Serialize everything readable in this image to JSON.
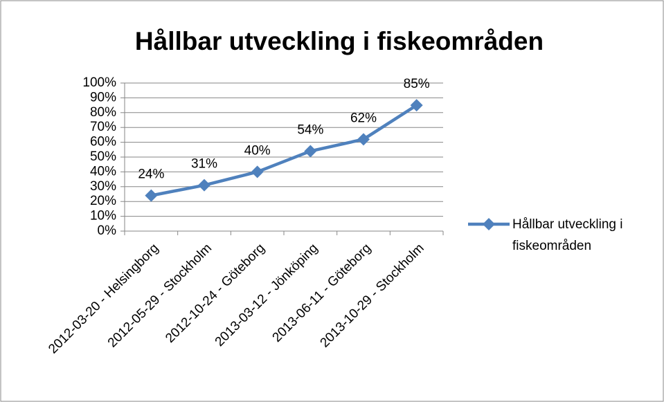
{
  "chart_data": {
    "type": "line",
    "title": "Hållbar utveckling i fiskeområden",
    "categories": [
      "2012-03-20 - Helsingborg",
      "2012-05-29 - Stockholm",
      "2012-10-24 - Göteborg",
      "2013-03-12 - Jönköping",
      "2013-06-11 - Göteborg",
      "2013-10-29 - Stockholm"
    ],
    "series": [
      {
        "name": "Hållbar utveckling i fiskeområden",
        "color": "#4f81bd",
        "values": [
          24,
          31,
          40,
          54,
          62,
          85
        ],
        "value_labels": [
          "24%",
          "31%",
          "40%",
          "54%",
          "62%",
          "85%"
        ]
      }
    ],
    "ylim": [
      0,
      100
    ],
    "yticks": [
      {
        "value": 0,
        "label": "0%"
      },
      {
        "value": 10,
        "label": "10%"
      },
      {
        "value": 20,
        "label": "20%"
      },
      {
        "value": 30,
        "label": "30%"
      },
      {
        "value": 40,
        "label": "40%"
      },
      {
        "value": 50,
        "label": "50%"
      },
      {
        "value": 60,
        "label": "60%"
      },
      {
        "value": 70,
        "label": "70%"
      },
      {
        "value": 80,
        "label": "80%"
      },
      {
        "value": 90,
        "label": "90%"
      },
      {
        "value": 100,
        "label": "100%"
      }
    ],
    "grid": true,
    "legend": "right"
  }
}
